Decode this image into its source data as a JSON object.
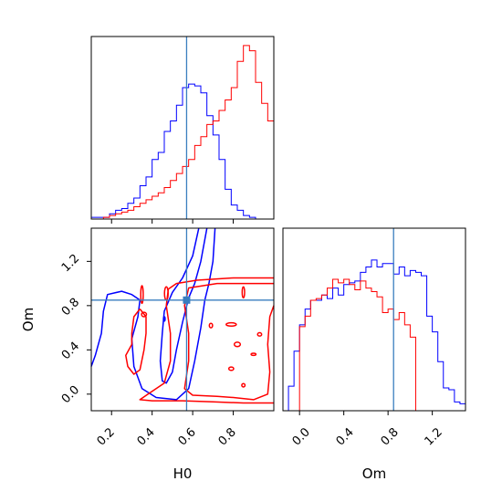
{
  "chart_data": [
    {
      "type": "histogram",
      "panel": "H0 marginal",
      "x_range": [
        0.1,
        1.0
      ],
      "bin_width": 0.03,
      "truth": 0.57,
      "series": [
        {
          "color": "#0000ff",
          "bin_start": 0.1,
          "counts": [
            0.01,
            0.01,
            0.01,
            0.03,
            0.05,
            0.06,
            0.09,
            0.12,
            0.19,
            0.24,
            0.34,
            0.38,
            0.5,
            0.56,
            0.65,
            0.75,
            0.77,
            0.76,
            0.72,
            0.59,
            0.48,
            0.34,
            0.17,
            0.08,
            0.05,
            0.02,
            0.01
          ]
        },
        {
          "color": "#ff0000",
          "bin_start": 0.1,
          "counts": [
            0.0,
            0.0,
            0.01,
            0.02,
            0.03,
            0.04,
            0.05,
            0.07,
            0.09,
            0.11,
            0.13,
            0.15,
            0.18,
            0.22,
            0.26,
            0.3,
            0.34,
            0.42,
            0.47,
            0.54,
            0.56,
            0.62,
            0.68,
            0.75,
            0.9,
            0.99,
            0.96,
            0.78,
            0.66,
            0.56,
            0.5
          ]
        }
      ]
    },
    {
      "type": "contour",
      "panel": "H0 vs Om",
      "x_range": [
        0.1,
        1.0
      ],
      "y_range": [
        -0.15,
        1.5
      ],
      "truth": {
        "x": 0.57,
        "y": 0.85
      },
      "marker": {
        "x": 0.57,
        "y": 0.85
      },
      "series": [
        {
          "color": "#0000ff",
          "contours": [
            [
              [
                0.67,
                1.5
              ],
              [
                0.64,
                1.2
              ],
              [
                0.61,
                1.0
              ],
              [
                0.58,
                0.87
              ],
              [
                0.55,
                0.65
              ],
              [
                0.52,
                0.4
              ],
              [
                0.5,
                0.2
              ],
              [
                0.47,
                0.1
              ],
              [
                0.45,
                0.12
              ],
              [
                0.44,
                0.3
              ],
              [
                0.45,
                0.55
              ],
              [
                0.46,
                0.75
              ],
              [
                0.5,
                0.92
              ],
              [
                0.55,
                1.05
              ],
              [
                0.6,
                1.25
              ],
              [
                0.63,
                1.5
              ]
            ],
            [
              [
                0.71,
                1.5
              ],
              [
                0.7,
                1.2
              ],
              [
                0.68,
                1.0
              ],
              [
                0.66,
                0.85
              ],
              [
                0.64,
                0.6
              ],
              [
                0.61,
                0.3
              ],
              [
                0.58,
                0.05
              ],
              [
                0.52,
                -0.05
              ],
              [
                0.42,
                -0.03
              ],
              [
                0.35,
                0.05
              ],
              [
                0.31,
                0.25
              ],
              [
                0.3,
                0.5
              ],
              [
                0.33,
                0.7
              ],
              [
                0.34,
                0.85
              ],
              [
                0.3,
                0.9
              ],
              [
                0.25,
                0.93
              ],
              [
                0.18,
                0.9
              ],
              [
                0.16,
                0.75
              ],
              [
                0.15,
                0.55
              ],
              [
                0.12,
                0.35
              ],
              [
                0.1,
                0.25
              ]
            ]
          ]
        },
        {
          "color": "#ff0000",
          "contours": [
            [
              [
                1.0,
                1.05
              ],
              [
                0.8,
                1.05
              ],
              [
                0.62,
                1.03
              ],
              [
                0.52,
                1.0
              ],
              [
                0.48,
                0.95
              ],
              [
                0.47,
                0.8
              ],
              [
                0.49,
                0.55
              ],
              [
                0.49,
                0.3
              ],
              [
                0.46,
                0.1
              ],
              [
                0.38,
                0.0
              ],
              [
                0.34,
                -0.05
              ],
              [
                0.4,
                -0.06
              ],
              [
                0.55,
                -0.06
              ],
              [
                0.7,
                -0.07
              ],
              [
                0.85,
                -0.08
              ],
              [
                1.0,
                -0.08
              ]
            ],
            [
              [
                1.0,
                1.0
              ],
              [
                0.72,
                1.0
              ],
              [
                0.58,
                0.96
              ],
              [
                0.56,
                0.8
              ],
              [
                0.58,
                0.55
              ],
              [
                0.58,
                0.3
              ],
              [
                0.56,
                0.05
              ],
              [
                0.6,
                -0.01
              ],
              [
                0.72,
                -0.02
              ],
              [
                0.8,
                -0.03
              ],
              [
                0.9,
                -0.05
              ],
              [
                0.97,
                0.0
              ],
              [
                0.98,
                0.2
              ],
              [
                0.97,
                0.45
              ],
              [
                0.98,
                0.7
              ],
              [
                1.0,
                0.8
              ]
            ],
            [
              [
                0.34,
                0.77
              ],
              [
                0.31,
                0.7
              ],
              [
                0.3,
                0.55
              ],
              [
                0.3,
                0.45
              ],
              [
                0.27,
                0.35
              ],
              [
                0.28,
                0.25
              ],
              [
                0.31,
                0.18
              ],
              [
                0.34,
                0.22
              ],
              [
                0.36,
                0.4
              ],
              [
                0.37,
                0.55
              ],
              [
                0.37,
                0.7
              ],
              [
                0.34,
                0.77
              ]
            ]
          ]
        }
      ],
      "small_contours": [
        {
          "color": "#ff0000",
          "x": 0.35,
          "y": 0.9,
          "rx": 0.006,
          "ry": 0.08
        },
        {
          "color": "#ff0000",
          "x": 0.47,
          "y": 0.91,
          "rx": 0.009,
          "ry": 0.06
        },
        {
          "color": "#ff0000",
          "x": 0.36,
          "y": 0.72,
          "rx": 0.012,
          "ry": 0.02
        },
        {
          "color": "#ff0000",
          "x": 0.69,
          "y": 0.62,
          "rx": 0.008,
          "ry": 0.02
        },
        {
          "color": "#ff0000",
          "x": 0.79,
          "y": 0.63,
          "rx": 0.025,
          "ry": 0.015
        },
        {
          "color": "#ff0000",
          "x": 0.85,
          "y": 0.92,
          "rx": 0.006,
          "ry": 0.05
        },
        {
          "color": "#ff0000",
          "x": 0.82,
          "y": 0.45,
          "rx": 0.015,
          "ry": 0.02
        },
        {
          "color": "#ff0000",
          "x": 0.9,
          "y": 0.36,
          "rx": 0.012,
          "ry": 0.01
        },
        {
          "color": "#ff0000",
          "x": 0.79,
          "y": 0.23,
          "rx": 0.012,
          "ry": 0.015
        },
        {
          "color": "#ff0000",
          "x": 0.85,
          "y": 0.08,
          "rx": 0.008,
          "ry": 0.015
        },
        {
          "color": "#ff0000",
          "x": 0.93,
          "y": 0.54,
          "rx": 0.01,
          "ry": 0.015
        },
        {
          "color": "#0000ff",
          "x": 0.46,
          "y": 0.68,
          "rx": 0.004,
          "ry": 0.02
        }
      ]
    },
    {
      "type": "histogram",
      "panel": "Om marginal",
      "x_range": [
        -0.15,
        1.5
      ],
      "bin_width": 0.05,
      "truth": 0.85,
      "series": [
        {
          "color": "#0000ff",
          "bin_start": -0.1,
          "counts": [
            0.14,
            0.34,
            0.49,
            0.58,
            0.63,
            0.63,
            0.66,
            0.64,
            0.7,
            0.66,
            0.72,
            0.73,
            0.74,
            0.79,
            0.82,
            0.86,
            0.82,
            0.84,
            0.84,
            0.78,
            0.82,
            0.77,
            0.8,
            0.79,
            0.77,
            0.54,
            0.45,
            0.28,
            0.13,
            0.12,
            0.05,
            0.04,
            0.01
          ]
        },
        {
          "color": "#ff0000",
          "bin_start": 0.0,
          "counts": [
            0.48,
            0.54,
            0.63,
            0.64,
            0.66,
            0.7,
            0.75,
            0.73,
            0.75,
            0.72,
            0.69,
            0.74,
            0.7,
            0.68,
            0.65,
            0.56,
            0.58,
            0.52,
            0.56,
            0.49,
            0.42
          ]
        }
      ]
    }
  ],
  "axes": {
    "h0_ticks": [
      "0.2",
      "0.4",
      "0.6",
      "0.8"
    ],
    "om_ticks": [
      "0.0",
      "0.4",
      "0.8",
      "1.2"
    ],
    "xlabel_left": "H0",
    "xlabel_right": "Om",
    "ylabel_left": "Om"
  }
}
